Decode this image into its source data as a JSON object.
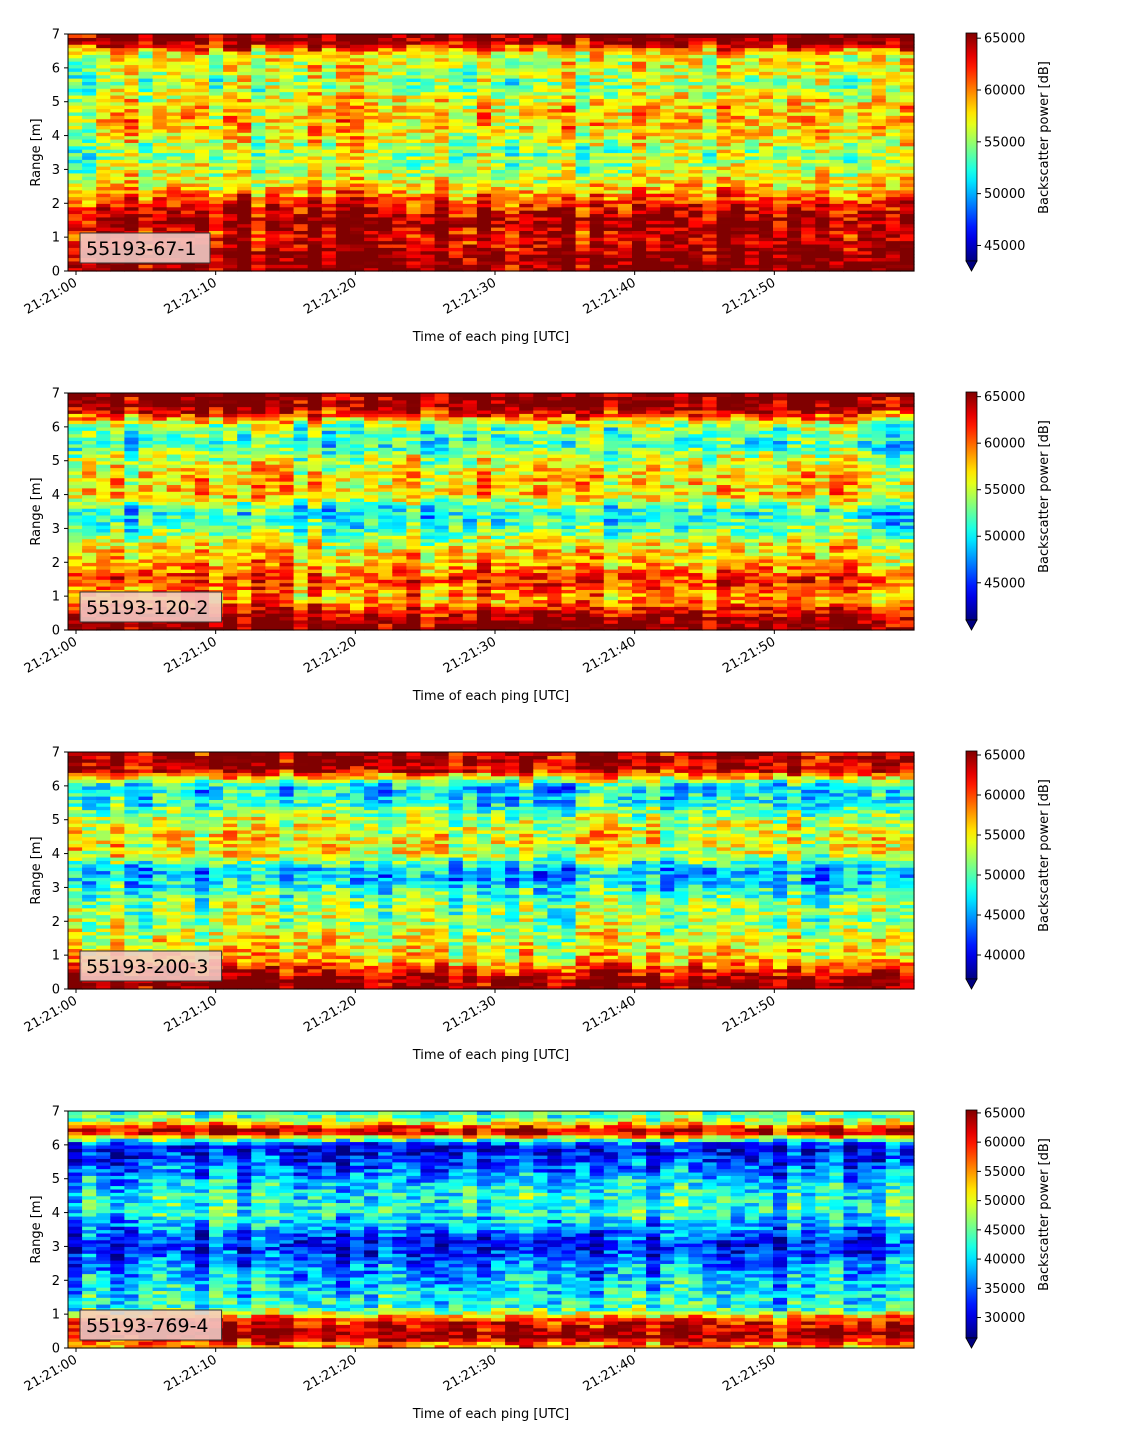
{
  "chart_data": [
    {
      "type": "heatmap",
      "label": "55193-67-1",
      "xlabel": "Time of each ping [UTC]",
      "ylabel": "Range [m]",
      "cbar_label": "Backscatter power [dB]",
      "x_range": [
        "21:21:00",
        "21:21:59"
      ],
      "x_ticks": [
        "21:21:00",
        "21:21:10",
        "21:21:20",
        "21:21:30",
        "21:21:40",
        "21:21:50"
      ],
      "ylim": [
        0,
        7
      ],
      "y_ticks": [
        0,
        1,
        2,
        3,
        4,
        5,
        6,
        7
      ],
      "clim": [
        43500,
        65500
      ],
      "cbar_ticks": [
        45000,
        50000,
        55000,
        60000,
        65000
      ],
      "colormap": "jet",
      "range_profile_m": [
        {
          "range": 0.1,
          "value": 65500
        },
        {
          "range": 0.5,
          "value": 65500
        },
        {
          "range": 1.0,
          "value": 63500
        },
        {
          "range": 1.5,
          "value": 65000
        },
        {
          "range": 2.0,
          "value": 62000
        },
        {
          "range": 2.5,
          "value": 58000
        },
        {
          "range": 3.0,
          "value": 56000
        },
        {
          "range": 3.5,
          "value": 55000
        },
        {
          "range": 4.0,
          "value": 57000
        },
        {
          "range": 4.5,
          "value": 58500
        },
        {
          "range": 5.0,
          "value": 57500
        },
        {
          "range": 5.5,
          "value": 55000
        },
        {
          "range": 6.0,
          "value": 56500
        },
        {
          "range": 6.4,
          "value": 57000
        },
        {
          "range": 6.8,
          "value": 65500
        }
      ]
    },
    {
      "type": "heatmap",
      "label": "55193-120-2",
      "xlabel": "Time of each ping [UTC]",
      "ylabel": "Range [m]",
      "cbar_label": "Backscatter power [dB]",
      "x_range": [
        "21:21:00",
        "21:21:59"
      ],
      "x_ticks": [
        "21:21:00",
        "21:21:10",
        "21:21:20",
        "21:21:30",
        "21:21:40",
        "21:21:50"
      ],
      "ylim": [
        0,
        7
      ],
      "y_ticks": [
        0,
        1,
        2,
        3,
        4,
        5,
        6,
        7
      ],
      "clim": [
        41000,
        65500
      ],
      "cbar_ticks": [
        45000,
        50000,
        55000,
        60000,
        65000
      ],
      "colormap": "jet",
      "range_profile_m": [
        {
          "range": 0.3,
          "value": 65500
        },
        {
          "range": 0.9,
          "value": 58000
        },
        {
          "range": 1.5,
          "value": 61000
        },
        {
          "range": 2.0,
          "value": 58000
        },
        {
          "range": 2.5,
          "value": 56000
        },
        {
          "range": 3.0,
          "value": 52000
        },
        {
          "range": 3.5,
          "value": 50000
        },
        {
          "range": 4.0,
          "value": 57000
        },
        {
          "range": 4.5,
          "value": 57000
        },
        {
          "range": 5.0,
          "value": 55000
        },
        {
          "range": 5.5,
          "value": 51000
        },
        {
          "range": 6.0,
          "value": 53000
        },
        {
          "range": 6.6,
          "value": 65500
        }
      ]
    },
    {
      "type": "heatmap",
      "label": "55193-200-3",
      "xlabel": "Time of each ping [UTC]",
      "ylabel": "Range [m]",
      "cbar_label": "Backscatter power [dB]",
      "x_range": [
        "21:21:00",
        "21:21:59"
      ],
      "x_ticks": [
        "21:21:00",
        "21:21:10",
        "21:21:20",
        "21:21:30",
        "21:21:40",
        "21:21:50"
      ],
      "ylim": [
        0,
        7
      ],
      "y_ticks": [
        0,
        1,
        2,
        3,
        4,
        5,
        6,
        7
      ],
      "clim": [
        37000,
        65500
      ],
      "cbar_ticks": [
        40000,
        45000,
        50000,
        55000,
        60000,
        65000
      ],
      "colormap": "jet",
      "range_profile_m": [
        {
          "range": 0.3,
          "value": 65500
        },
        {
          "range": 0.9,
          "value": 56000
        },
        {
          "range": 1.5,
          "value": 54000
        },
        {
          "range": 2.0,
          "value": 52000
        },
        {
          "range": 2.5,
          "value": 52000
        },
        {
          "range": 3.0,
          "value": 48000
        },
        {
          "range": 3.5,
          "value": 45000
        },
        {
          "range": 4.0,
          "value": 54000
        },
        {
          "range": 4.5,
          "value": 55000
        },
        {
          "range": 5.0,
          "value": 53000
        },
        {
          "range": 5.5,
          "value": 48000
        },
        {
          "range": 6.0,
          "value": 47000
        },
        {
          "range": 6.5,
          "value": 64000
        }
      ]
    },
    {
      "type": "heatmap",
      "label": "55193-769-4",
      "xlabel": "Time of each ping [UTC]",
      "ylabel": "Range [m]",
      "cbar_label": "Backscatter power [dB]",
      "x_range": [
        "21:21:00",
        "21:21:59"
      ],
      "x_ticks": [
        "21:21:00",
        "21:21:10",
        "21:21:20",
        "21:21:30",
        "21:21:40",
        "21:21:50"
      ],
      "ylim": [
        0,
        7
      ],
      "y_ticks": [
        0,
        1,
        2,
        3,
        4,
        5,
        6,
        7
      ],
      "clim": [
        26500,
        65500
      ],
      "cbar_ticks": [
        30000,
        35000,
        40000,
        45000,
        50000,
        55000,
        60000,
        65000
      ],
      "colormap": "jet",
      "range_profile_m": [
        {
          "range": 0.1,
          "value": 55000
        },
        {
          "range": 0.4,
          "value": 65500
        },
        {
          "range": 0.8,
          "value": 60000
        },
        {
          "range": 1.2,
          "value": 42000
        },
        {
          "range": 1.8,
          "value": 40000
        },
        {
          "range": 2.5,
          "value": 36000
        },
        {
          "range": 3.0,
          "value": 31000
        },
        {
          "range": 3.5,
          "value": 36000
        },
        {
          "range": 4.0,
          "value": 42000
        },
        {
          "range": 4.5,
          "value": 42000
        },
        {
          "range": 5.0,
          "value": 38000
        },
        {
          "range": 5.5,
          "value": 33000
        },
        {
          "range": 6.0,
          "value": 30000
        },
        {
          "range": 6.4,
          "value": 65000
        },
        {
          "range": 6.8,
          "value": 44000
        }
      ]
    }
  ]
}
